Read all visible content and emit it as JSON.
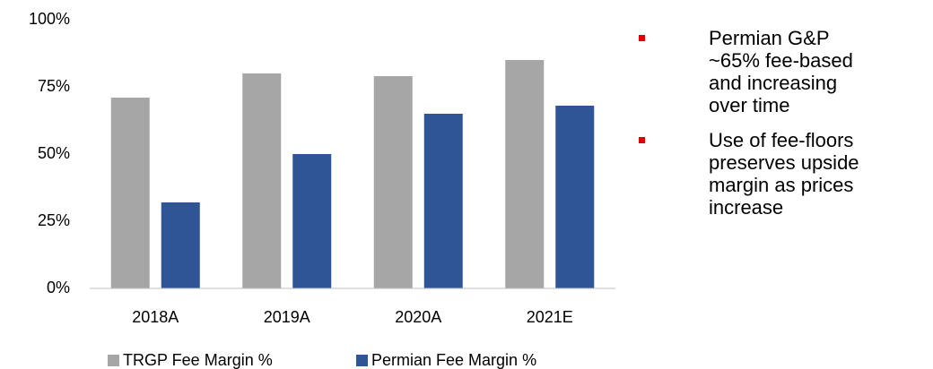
{
  "chart_data": {
    "type": "bar",
    "categories": [
      "2018A",
      "2019A",
      "2020A",
      "2021E"
    ],
    "series": [
      {
        "name": "TRGP Fee Margin %",
        "color": "#a6a6a6",
        "values": [
          71,
          80,
          79,
          85
        ]
      },
      {
        "name": "Permian Fee Margin %",
        "color": "#2f5597",
        "values": [
          32,
          50,
          65,
          68
        ]
      }
    ],
    "ylim": [
      0,
      100
    ],
    "yticks": [
      {
        "value": 0,
        "label": "0%"
      },
      {
        "value": 25,
        "label": "25%"
      },
      {
        "value": 50,
        "label": "50%"
      },
      {
        "value": 75,
        "label": "75%"
      },
      {
        "value": 100,
        "label": "100%"
      }
    ],
    "grid": false
  },
  "bullets": [
    "Permian G&P ~65% fee-based and increasing over time",
    "Use of fee-floors preserves upside margin as prices increase"
  ]
}
